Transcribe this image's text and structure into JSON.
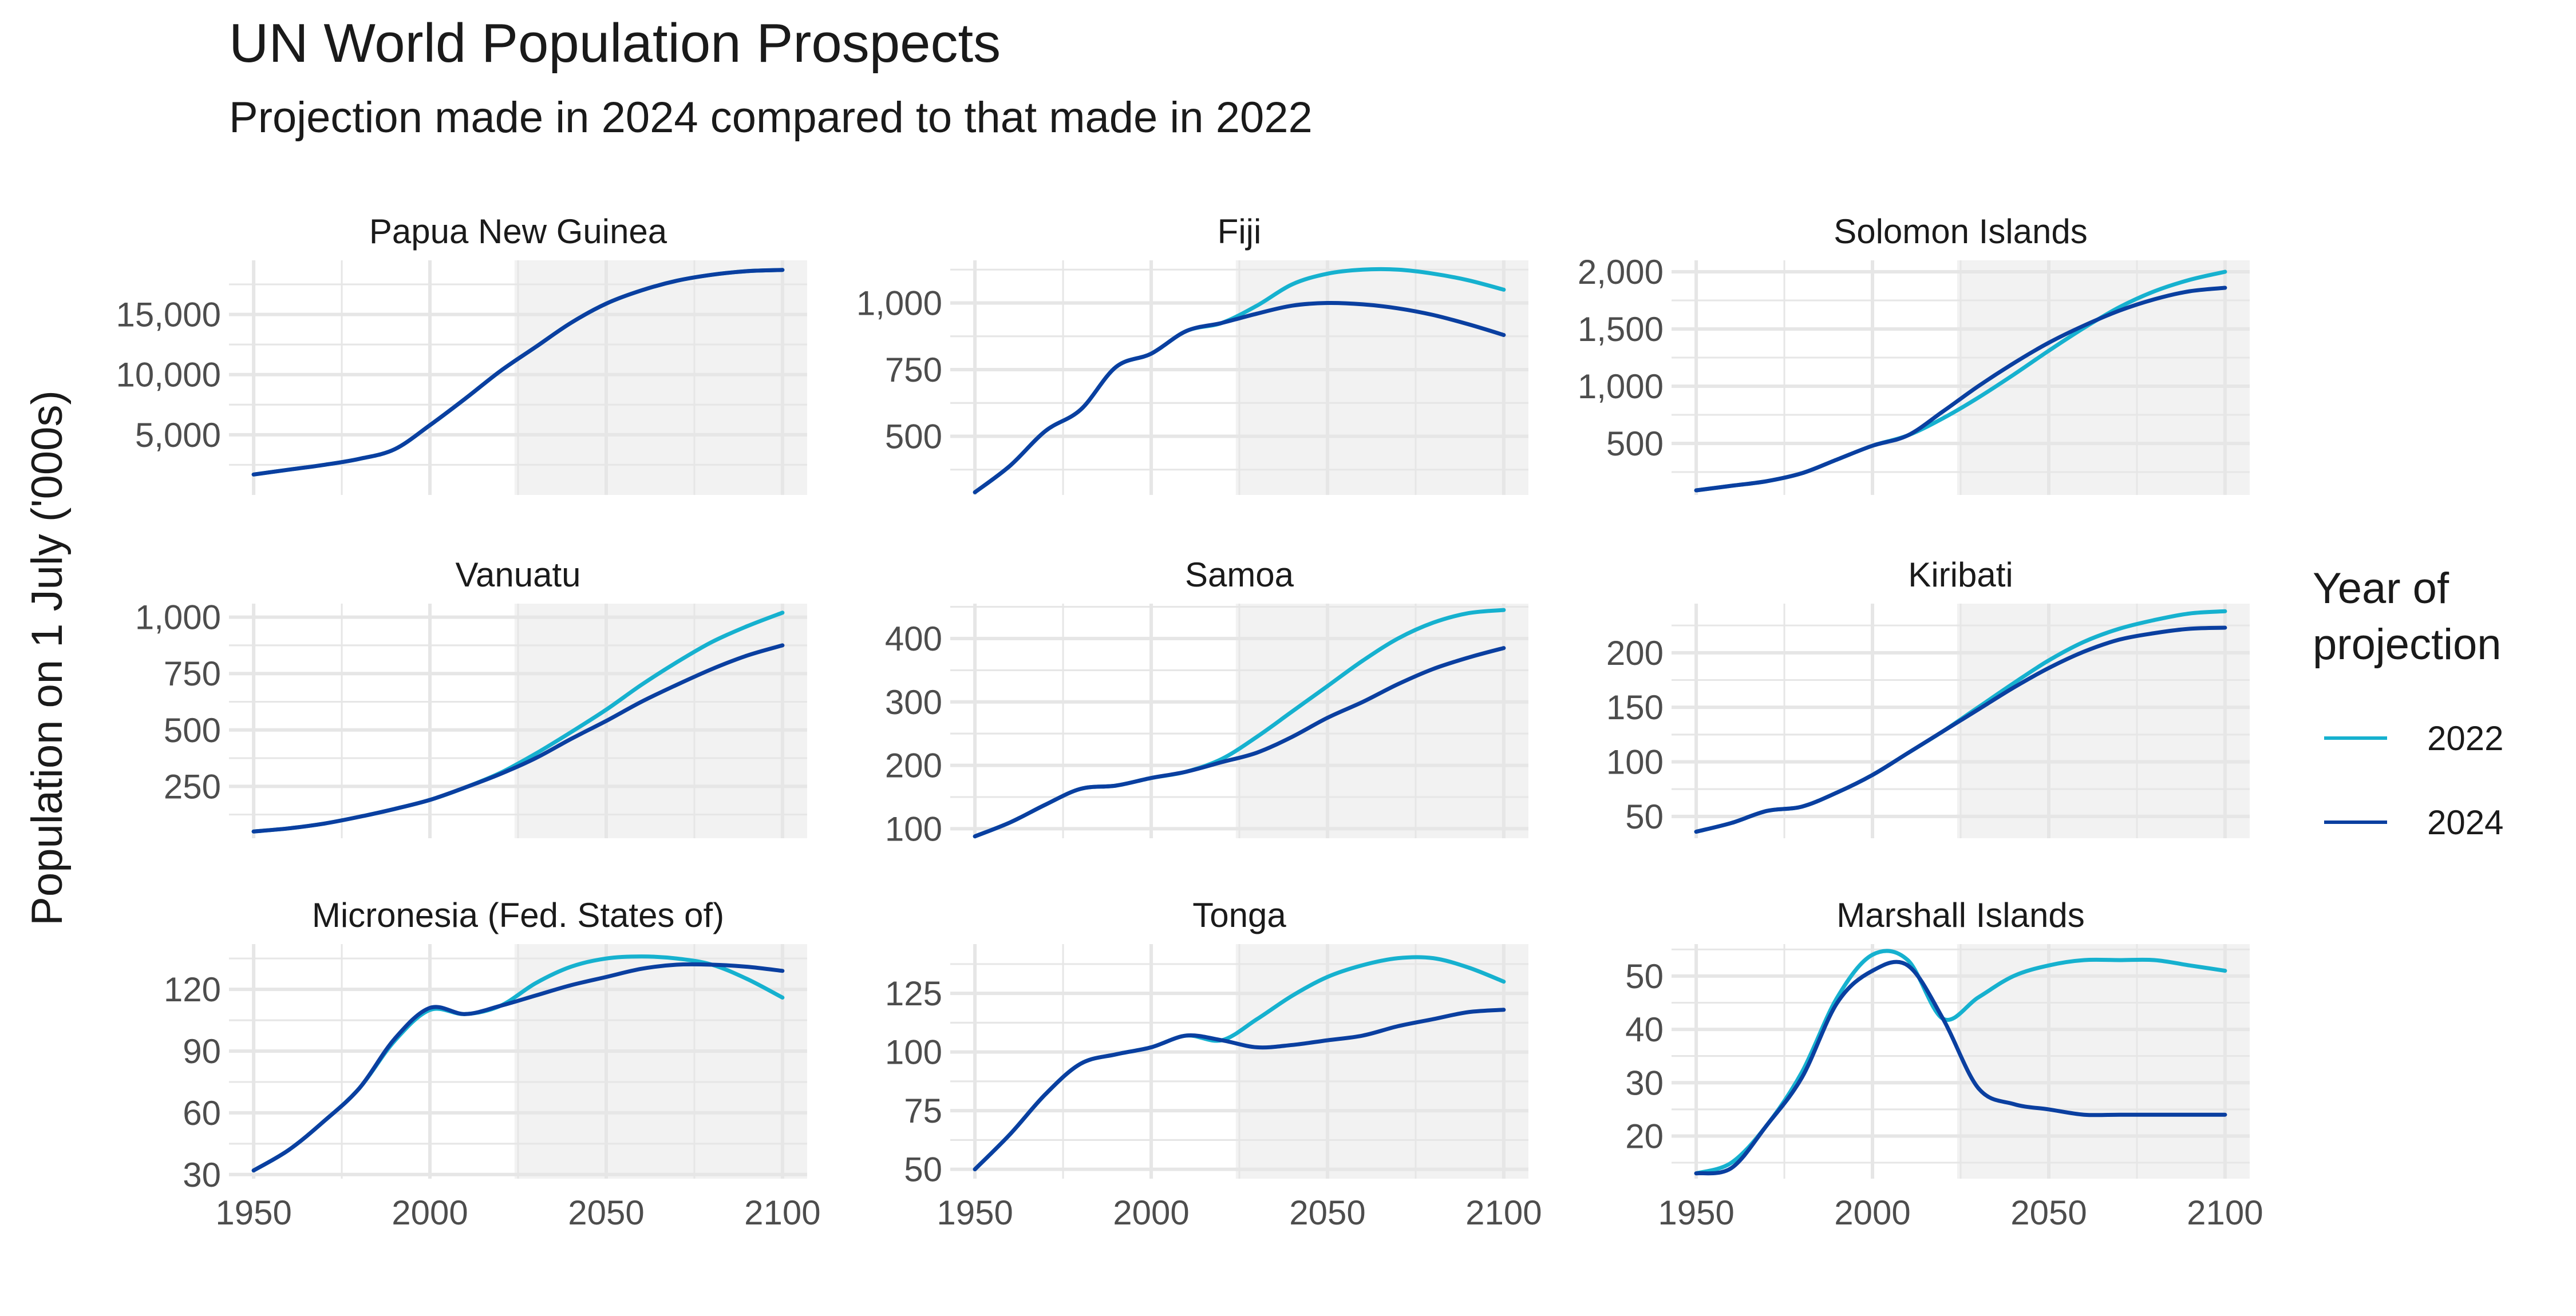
{
  "title": "UN World Population Prospects",
  "subtitle": "Projection made in 2024 compared to that made in 2022",
  "colors": {
    "2022": "#16b1cf",
    "2024": "#0a3fa0",
    "projection_shade": "#f2f2f2",
    "grid": "#e6e6e6"
  },
  "legend": {
    "title": "Year of projection",
    "items": [
      {
        "label": "2022",
        "color": "#16b1cf"
      },
      {
        "label": "2024",
        "color": "#0a3fa0"
      }
    ]
  },
  "chart_data": {
    "type": "line",
    "ylabel": "Population on 1 July ('000s)",
    "xlabel": "",
    "projection_start": 2024,
    "legend_position": "right",
    "grid": true,
    "x_ticks": [
      1950,
      2000,
      2050,
      2100
    ],
    "xlim": [
      1943,
      2107
    ],
    "panels": [
      {
        "name": "Papua New Guinea",
        "ylim": [
          0,
          19500
        ],
        "y_ticks": [
          5000,
          10000,
          15000
        ],
        "y_tick_labels": [
          "5,000",
          "10,000",
          "15,000"
        ],
        "x": [
          1950,
          1960,
          1970,
          1980,
          1990,
          2000,
          2010,
          2020,
          2030,
          2040,
          2050,
          2060,
          2070,
          2080,
          2090,
          2100
        ],
        "series": [
          {
            "name": "2022",
            "values": [
              1700,
              2100,
              2500,
              3000,
              3800,
              5800,
              8000,
              10300,
              12300,
              14300,
              15900,
              17000,
              17800,
              18300,
              18600,
              18700
            ]
          },
          {
            "name": "2024",
            "values": [
              1700,
              2100,
              2500,
              3000,
              3800,
              5800,
              8000,
              10300,
              12300,
              14300,
              15900,
              17000,
              17800,
              18300,
              18600,
              18700
            ]
          }
        ]
      },
      {
        "name": "Fiji",
        "ylim": [
          280,
          1160
        ],
        "y_ticks": [
          500,
          750,
          1000
        ],
        "y_tick_labels": [
          "500",
          "750",
          "1,000"
        ],
        "x": [
          1950,
          1960,
          1970,
          1980,
          1990,
          2000,
          2010,
          2020,
          2030,
          2040,
          2050,
          2060,
          2070,
          2080,
          2090,
          2100
        ],
        "series": [
          {
            "name": "2022",
            "values": [
              290,
              390,
              520,
              600,
              760,
              810,
              895,
              925,
              990,
              1070,
              1110,
              1125,
              1125,
              1110,
              1085,
              1050
            ]
          },
          {
            "name": "2024",
            "values": [
              290,
              390,
              520,
              600,
              760,
              810,
              895,
              925,
              960,
              990,
              1000,
              995,
              980,
              955,
              920,
              880
            ]
          }
        ]
      },
      {
        "name": "Solomon Islands",
        "ylim": [
          50,
          2100
        ],
        "y_ticks": [
          500,
          1000,
          1500,
          2000
        ],
        "y_tick_labels": [
          "500",
          "1,000",
          "1,500",
          "2,000"
        ],
        "x": [
          1950,
          1960,
          1970,
          1980,
          1990,
          2000,
          2010,
          2020,
          2030,
          2040,
          2050,
          2060,
          2070,
          2080,
          2090,
          2100
        ],
        "series": [
          {
            "name": "2022",
            "values": [
              90,
              130,
              170,
              240,
              360,
              480,
              570,
              720,
              900,
              1100,
              1310,
              1510,
              1690,
              1830,
              1930,
              2000
            ]
          },
          {
            "name": "2024",
            "values": [
              90,
              130,
              170,
              240,
              360,
              480,
              570,
              780,
              1000,
              1200,
              1380,
              1530,
              1660,
              1760,
              1830,
              1860
            ]
          }
        ]
      },
      {
        "name": "Vanuatu",
        "ylim": [
          20,
          1060
        ],
        "y_ticks": [
          250,
          500,
          750,
          1000
        ],
        "y_tick_labels": [
          "250",
          "500",
          "750",
          "1,000"
        ],
        "x": [
          1950,
          1960,
          1970,
          1980,
          1990,
          2000,
          2010,
          2020,
          2030,
          2040,
          2050,
          2060,
          2070,
          2080,
          2090,
          2100
        ],
        "series": [
          {
            "name": "2022",
            "values": [
              50,
              64,
              85,
              115,
              150,
              190,
              245,
              310,
              395,
              490,
              590,
              700,
              800,
              890,
              960,
              1020
            ]
          },
          {
            "name": "2024",
            "values": [
              50,
              64,
              85,
              115,
              150,
              190,
              245,
              305,
              375,
              460,
              540,
              625,
              700,
              770,
              830,
              875
            ]
          }
        ]
      },
      {
        "name": "Samoa",
        "ylim": [
          85,
          455
        ],
        "y_ticks": [
          100,
          200,
          300,
          400
        ],
        "y_tick_labels": [
          "100",
          "200",
          "300",
          "400"
        ],
        "x": [
          1950,
          1960,
          1970,
          1980,
          1990,
          2000,
          2010,
          2020,
          2030,
          2040,
          2050,
          2060,
          2070,
          2080,
          2090,
          2100
        ],
        "series": [
          {
            "name": "2022",
            "values": [
              88,
              110,
              138,
              163,
              168,
              180,
              190,
              210,
              245,
              285,
              325,
              365,
              400,
              425,
              440,
              445
            ]
          },
          {
            "name": "2024",
            "values": [
              88,
              110,
              138,
              163,
              168,
              180,
              190,
              205,
              220,
              245,
              275,
              300,
              328,
              352,
              370,
              385
            ]
          }
        ]
      },
      {
        "name": "Kiribati",
        "ylim": [
          30,
          245
        ],
        "y_ticks": [
          50,
          100,
          150,
          200
        ],
        "y_tick_labels": [
          "50",
          "100",
          "150",
          "200"
        ],
        "x": [
          1950,
          1960,
          1970,
          1980,
          1990,
          2000,
          2010,
          2020,
          2030,
          2040,
          2050,
          2060,
          2070,
          2080,
          2090,
          2100
        ],
        "series": [
          {
            "name": "2022",
            "values": [
              36,
              44,
              55,
              59,
              72,
              88,
              108,
              128,
              150,
              172,
              193,
              210,
              222,
              230,
              236,
              238
            ]
          },
          {
            "name": "2024",
            "values": [
              36,
              44,
              55,
              59,
              72,
              88,
              108,
              128,
              148,
              168,
              186,
              201,
              212,
              218,
              222,
              223
            ]
          }
        ]
      },
      {
        "name": "Micronesia (Fed. States of)",
        "ylim": [
          28,
          142
        ],
        "y_ticks": [
          30,
          60,
          90,
          120
        ],
        "y_tick_labels": [
          "30",
          "60",
          "90",
          "120"
        ],
        "x": [
          1950,
          1960,
          1970,
          1980,
          1990,
          2000,
          2010,
          2020,
          2030,
          2040,
          2050,
          2060,
          2070,
          2080,
          2090,
          2100
        ],
        "series": [
          {
            "name": "2022",
            "values": [
              32,
              42,
              56,
              72,
              95,
              110,
              108,
              112,
              123,
              131,
              135,
              136,
              135,
              132,
              125,
              116
            ]
          },
          {
            "name": "2024",
            "values": [
              32,
              42,
              56,
              72,
              96,
              111,
              108,
              112,
              117,
              122,
              126,
              130,
              132,
              132,
              131,
              129
            ]
          }
        ]
      },
      {
        "name": "Tonga",
        "ylim": [
          46,
          146
        ],
        "y_ticks": [
          50,
          75,
          100,
          125
        ],
        "y_tick_labels": [
          "50",
          "75",
          "100",
          "125"
        ],
        "x": [
          1950,
          1960,
          1970,
          1980,
          1990,
          2000,
          2010,
          2020,
          2030,
          2040,
          2050,
          2060,
          2070,
          2080,
          2090,
          2100
        ],
        "series": [
          {
            "name": "2022",
            "values": [
              50,
              65,
              82,
              95,
              99,
              102,
              107,
              105,
              114,
              124,
              132,
              137,
              140,
              140,
              136,
              130
            ]
          },
          {
            "name": "2024",
            "values": [
              50,
              65,
              82,
              95,
              99,
              102,
              107,
              105,
              102,
              103,
              105,
              107,
              111,
              114,
              117,
              118
            ]
          }
        ]
      },
      {
        "name": "Marshall Islands",
        "ylim": [
          12,
          56
        ],
        "y_ticks": [
          20,
          30,
          40,
          50
        ],
        "y_tick_labels": [
          "20",
          "30",
          "40",
          "50"
        ],
        "x": [
          1950,
          1960,
          1970,
          1980,
          1990,
          2000,
          2010,
          2020,
          2030,
          2040,
          2050,
          2060,
          2070,
          2080,
          2090,
          2100
        ],
        "series": [
          {
            "name": "2022",
            "values": [
              13,
              15,
              22,
              32,
              46,
              54,
              53,
              42,
              46,
              50,
              52,
              53,
              53,
              53,
              52,
              51
            ]
          },
          {
            "name": "2024",
            "values": [
              13,
              14,
              22,
              31,
              45,
              51,
              52,
              42,
              29,
              26,
              25,
              24,
              24,
              24,
              24,
              24
            ]
          }
        ]
      }
    ]
  }
}
